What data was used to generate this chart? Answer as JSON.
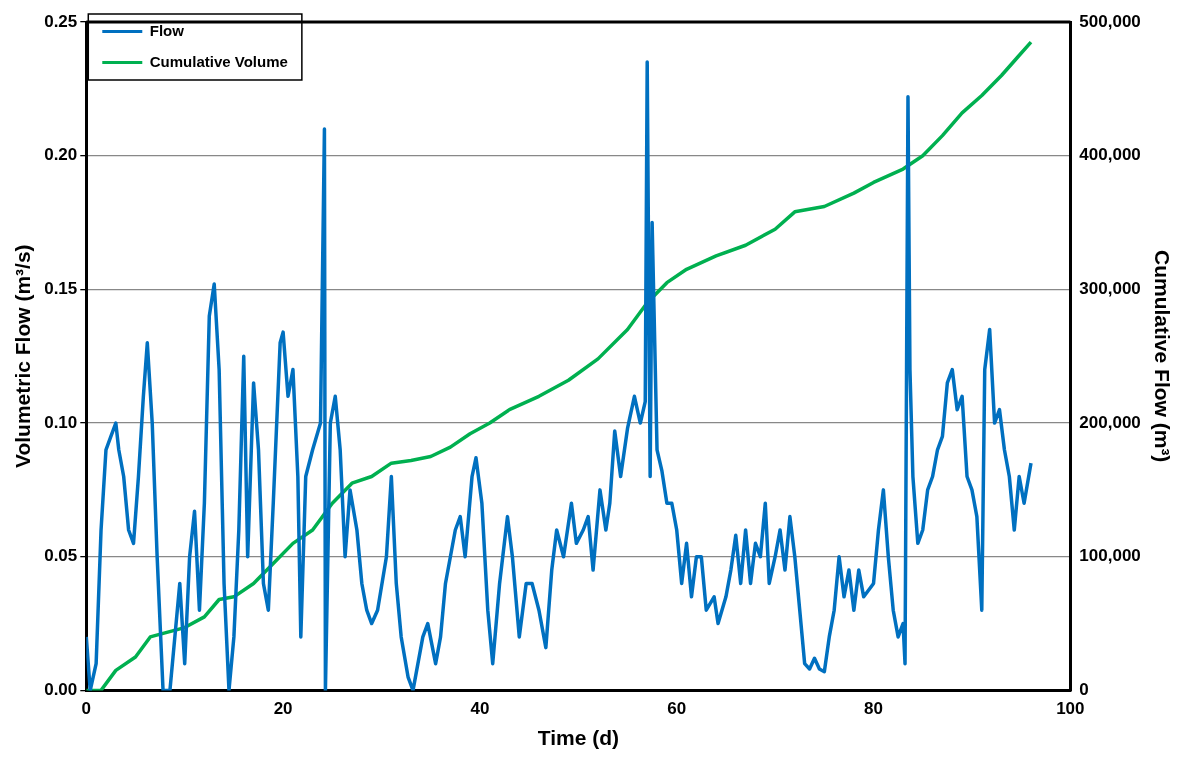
{
  "chart_data": {
    "type": "line",
    "xlabel": "Time (d)",
    "ylabel": "Volumetric Flow (m³/s)",
    "y2label": "Cumulative Flow (m³)",
    "xlim": [
      0,
      100
    ],
    "xticks": [
      0,
      20,
      40,
      60,
      80,
      100
    ],
    "ylim": [
      0,
      0.25
    ],
    "yticks": [
      {
        "value": 0,
        "label": "0.00"
      },
      {
        "value": 0.05,
        "label": "0.05"
      },
      {
        "value": 0.1,
        "label": "0.10"
      },
      {
        "value": 0.15,
        "label": "0.15"
      },
      {
        "value": 0.2,
        "label": "0.20"
      },
      {
        "value": 0.25,
        "label": "0.25"
      }
    ],
    "y2lim": [
      0,
      500000
    ],
    "y2ticks": [
      {
        "value": 0,
        "label": "0"
      },
      {
        "value": 100000,
        "label": "100,000"
      },
      {
        "value": 200000,
        "label": "200,000"
      },
      {
        "value": 300000,
        "label": "300,000"
      },
      {
        "value": 400000,
        "label": "400,000"
      },
      {
        "value": 500000,
        "label": "500,000"
      }
    ],
    "grid": "y",
    "legend": "top left",
    "marker": "none",
    "line_style": "solid",
    "series": [
      {
        "name": "Flow",
        "color": "#0070c0",
        "x": [
          0,
          0.4,
          1,
          1.5,
          2,
          2.5,
          3,
          3.3,
          3.8,
          4.3,
          4.8,
          5.3,
          5.8,
          6.2,
          6.7,
          7.2,
          7.8,
          8.5,
          9,
          9.5,
          10,
          10.5,
          11,
          11.5,
          12,
          12.5,
          13,
          13.5,
          14,
          14.5,
          15,
          15.5,
          16,
          16.4,
          17,
          17.5,
          18,
          18.5,
          19,
          19.7,
          20,
          20.5,
          21,
          21.5,
          21.8,
          22.3,
          23,
          23.8,
          24.2,
          24.3,
          24.8,
          25.3,
          25.8,
          26.3,
          26.8,
          27.5,
          28,
          28.5,
          29,
          29.6,
          30.5,
          31,
          31.5,
          32,
          32.7,
          33.2,
          33.7,
          34.2,
          34.7,
          35.5,
          36,
          36.5,
          37,
          37.5,
          38,
          38.5,
          39.2,
          39.6,
          40.2,
          40.8,
          41.3,
          42,
          42.8,
          43.3,
          44,
          44.7,
          45.3,
          46,
          46.7,
          47.3,
          47.8,
          48.5,
          49.3,
          49.8,
          50.5,
          51,
          51.5,
          52.2,
          52.8,
          53.2,
          53.7,
          54.3,
          55,
          55.7,
          56.3,
          56.8,
          57,
          57.3,
          57.5,
          58,
          58.5,
          59,
          59.5,
          60,
          60.5,
          61,
          61.5,
          62,
          62.5,
          63,
          63.8,
          64.2,
          65,
          65.5,
          66,
          66.5,
          67,
          67.5,
          68,
          68.5,
          69,
          69.4,
          70,
          70.5,
          71,
          71.5,
          72,
          72.5,
          73,
          73.5,
          74,
          74.5,
          75,
          75.5,
          76,
          76.5,
          77,
          77.5,
          78,
          78.5,
          79,
          80,
          80.5,
          81,
          81.5,
          82,
          82.5,
          83,
          83.2,
          83.5,
          83.7,
          84,
          84.5,
          85,
          85.5,
          86,
          86.5,
          87,
          87.5,
          88,
          88.5,
          89,
          89.5,
          90,
          90.5,
          91,
          91.3,
          91.8,
          92.3,
          92.8,
          93.3,
          93.8,
          94.3,
          94.8,
          95.3,
          96
        ],
        "values": [
          0.02,
          0,
          0.01,
          0.06,
          0.09,
          0.095,
          0.1,
          0.09,
          0.08,
          0.06,
          0.055,
          0.08,
          0.11,
          0.13,
          0.1,
          0.05,
          0,
          0,
          0.02,
          0.04,
          0.01,
          0.05,
          0.067,
          0.03,
          0.07,
          0.14,
          0.152,
          0.12,
          0.04,
          0,
          0.02,
          0.06,
          0.125,
          0.05,
          0.115,
          0.09,
          0.04,
          0.03,
          0.07,
          0.13,
          0.134,
          0.11,
          0.12,
          0.08,
          0.02,
          0.08,
          0.09,
          0.1,
          0.21,
          0,
          0.1,
          0.11,
          0.09,
          0.05,
          0.075,
          0.06,
          0.04,
          0.03,
          0.025,
          0.03,
          0.05,
          0.08,
          0.04,
          0.02,
          0.005,
          0,
          0.01,
          0.02,
          0.025,
          0.01,
          0.02,
          0.04,
          0.05,
          0.06,
          0.065,
          0.05,
          0.08,
          0.087,
          0.07,
          0.03,
          0.01,
          0.04,
          0.065,
          0.05,
          0.02,
          0.04,
          0.04,
          0.03,
          0.016,
          0.045,
          0.06,
          0.05,
          0.07,
          0.055,
          0.06,
          0.065,
          0.045,
          0.075,
          0.06,
          0.07,
          0.097,
          0.08,
          0.098,
          0.11,
          0.1,
          0.108,
          0.235,
          0.08,
          0.175,
          0.09,
          0.082,
          0.07,
          0.07,
          0.06,
          0.04,
          0.055,
          0.035,
          0.05,
          0.05,
          0.03,
          0.035,
          0.025,
          0.035,
          0.045,
          0.058,
          0.04,
          0.06,
          0.04,
          0.055,
          0.05,
          0.07,
          0.04,
          0.05,
          0.06,
          0.045,
          0.065,
          0.05,
          0.03,
          0.01,
          0.008,
          0.012,
          0.008,
          0.007,
          0.02,
          0.03,
          0.05,
          0.035,
          0.045,
          0.03,
          0.045,
          0.035,
          0.04,
          0.06,
          0.075,
          0.05,
          0.03,
          0.02,
          0.025,
          0.01,
          0.222,
          0.12,
          0.08,
          0.055,
          0.06,
          0.075,
          0.08,
          0.09,
          0.095,
          0.115,
          0.12,
          0.105,
          0.11,
          0.08,
          0.075,
          0.065,
          0.03,
          0.12,
          0.135,
          0.1,
          0.105,
          0.09,
          0.08,
          0.06,
          0.08,
          0.07,
          0.085
        ]
      },
      {
        "name": "Cumulative Volume",
        "color": "#00b050",
        "axis": "y2",
        "x": [
          0,
          1.5,
          3,
          5,
          6.5,
          8,
          10,
          12,
          13.5,
          15,
          17,
          19,
          21,
          23,
          25,
          27,
          29,
          31,
          33,
          35,
          37,
          39,
          41,
          43,
          46,
          49,
          52,
          55,
          57,
          59,
          61,
          64,
          67,
          70,
          72,
          75,
          78,
          80,
          83,
          85,
          87,
          89,
          91,
          93,
          96
        ],
        "values": [
          0,
          0,
          15000,
          25000,
          40000,
          43000,
          47000,
          55000,
          68000,
          70000,
          80000,
          95000,
          110000,
          120000,
          140000,
          155000,
          160000,
          170000,
          172000,
          175000,
          182000,
          192000,
          200000,
          210000,
          220000,
          232000,
          248000,
          270000,
          290000,
          305000,
          315000,
          325000,
          333000,
          345000,
          358000,
          362000,
          372000,
          380000,
          390000,
          400000,
          415000,
          432000,
          445000,
          460000,
          485000
        ]
      }
    ]
  }
}
